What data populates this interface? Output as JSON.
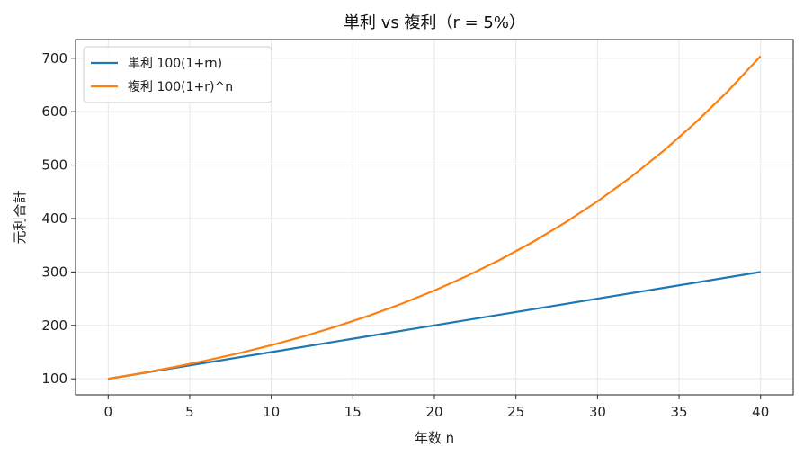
{
  "chart_data": {
    "type": "line",
    "title": "単利 vs 複利（r = 5%）",
    "xlabel": "年数 n",
    "ylabel": "元利合計",
    "xlim": [
      -2,
      42
    ],
    "ylim": [
      70,
      735
    ],
    "xticks": [
      0,
      5,
      10,
      15,
      20,
      25,
      30,
      35,
      40
    ],
    "yticks": [
      100,
      200,
      300,
      400,
      500,
      600,
      700
    ],
    "grid": true,
    "legend_position": "top-left",
    "series": [
      {
        "name": "単利 100(1+rn)",
        "color": "#1f77b4",
        "x": [
          0,
          5,
          10,
          15,
          20,
          25,
          30,
          35,
          40
        ],
        "y": [
          100,
          125,
          150,
          175,
          200,
          225,
          250,
          275,
          300
        ]
      },
      {
        "name": "複利 100(1+r)^n",
        "color": "#ff7f0e",
        "x": [
          0,
          2,
          4,
          6,
          8,
          10,
          12,
          14,
          16,
          18,
          20,
          22,
          24,
          26,
          28,
          30,
          32,
          34,
          36,
          38,
          40
        ],
        "y": [
          100,
          110.25,
          121.55,
          134.01,
          147.75,
          162.89,
          179.59,
          197.99,
          218.29,
          240.66,
          265.33,
          292.53,
          322.51,
          355.57,
          392.01,
          432.19,
          476.49,
          525.33,
          579.18,
          638.55,
          704.0
        ]
      }
    ]
  }
}
